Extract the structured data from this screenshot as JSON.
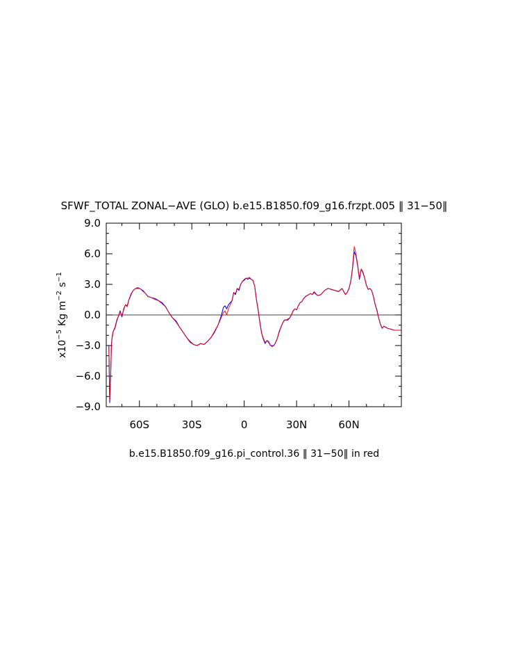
{
  "chart_data": {
    "type": "line",
    "title": "SFWF_TOTAL ZONAL−AVE (GLO) b.e15.B1850.f09_g16.frzpt.005 ‖ 31−50‖",
    "xlabel": "b.e15.B1850.f09_g16.pi_control.36 ‖ 31−50‖ in red",
    "ylabel": {
      "prefix": "x10",
      "exponent": "−5",
      "units": "Kg m",
      "m_exponent": "−2",
      "s_unit": "s",
      "s_exponent": "−1"
    },
    "xlim": [
      -79,
      90
    ],
    "ylim": [
      -9,
      9
    ],
    "xticks": [
      {
        "value": -60,
        "label": "60S"
      },
      {
        "value": -30,
        "label": "30S"
      },
      {
        "value": 0,
        "label": "0"
      },
      {
        "value": 30,
        "label": "30N"
      },
      {
        "value": 60,
        "label": "60N"
      }
    ],
    "yticks": [
      {
        "value": 9,
        "label": "9.0"
      },
      {
        "value": 6,
        "label": "6.0"
      },
      {
        "value": 3,
        "label": "3.0"
      },
      {
        "value": 0,
        "label": "0.0"
      },
      {
        "value": -3,
        "label": "−3.0"
      },
      {
        "value": -6,
        "label": "−6.0"
      },
      {
        "value": -9,
        "label": "−9.0"
      }
    ],
    "zero_line": true,
    "grid": false,
    "series": [
      {
        "color": "#0000ff",
        "x": [
          -77.5,
          -77,
          -76.5,
          -76,
          -75.5,
          -75,
          -74,
          -73,
          -72,
          -71,
          -70,
          -69,
          -68,
          -67,
          -66,
          -65,
          -64,
          -63,
          -62,
          -61,
          -60,
          -59,
          -58,
          -57,
          -56,
          -55,
          -53,
          -51,
          -49,
          -47,
          -45,
          -43,
          -41,
          -39,
          -37,
          -35,
          -33,
          -31,
          -29,
          -27,
          -25,
          -23,
          -21,
          -19,
          -17,
          -15,
          -13,
          -12,
          -11,
          -10,
          -9,
          -8,
          -7,
          -6,
          -5,
          -4,
          -3,
          -2,
          -1,
          0,
          1,
          2,
          3,
          4,
          5,
          6,
          7,
          8,
          9,
          10,
          11,
          12,
          13,
          14,
          15,
          16,
          17,
          18,
          19,
          20,
          21,
          22,
          23,
          24,
          25,
          26,
          27,
          28,
          29,
          30,
          31,
          32,
          33,
          34,
          35,
          36,
          37,
          38,
          39,
          40,
          42,
          44,
          46,
          48,
          50,
          52,
          54,
          56,
          58,
          59,
          60,
          61,
          62,
          63,
          64,
          65,
          66,
          67,
          68,
          69,
          70,
          71,
          72,
          73,
          74,
          75,
          76,
          77,
          78,
          79,
          80,
          81,
          82,
          84,
          86,
          88,
          90
        ],
        "values": [
          -3.0,
          -8.6,
          -6.0,
          -2.8,
          -2.0,
          -1.6,
          -1.3,
          -0.6,
          -0.1,
          0.4,
          -0.2,
          0.6,
          1.0,
          0.9,
          1.5,
          1.9,
          2.3,
          2.5,
          2.6,
          2.6,
          2.6,
          2.5,
          2.4,
          2.2,
          2.0,
          1.8,
          1.7,
          1.6,
          1.4,
          1.2,
          0.8,
          0.2,
          -0.3,
          -0.6,
          -1.2,
          -1.7,
          -2.2,
          -2.6,
          -2.9,
          -3.0,
          -2.8,
          -2.9,
          -2.6,
          -2.2,
          -1.7,
          -1.0,
          0.0,
          0.7,
          0.9,
          0.6,
          1.0,
          1.2,
          1.4,
          2.2,
          2.0,
          2.6,
          2.4,
          3.0,
          3.3,
          3.4,
          3.6,
          3.5,
          3.6,
          3.5,
          3.4,
          2.8,
          1.5,
          0.5,
          -0.8,
          -1.8,
          -2.4,
          -2.8,
          -2.5,
          -2.7,
          -3.0,
          -3.0,
          -3.0,
          -2.7,
          -2.3,
          -1.7,
          -1.2,
          -0.8,
          -0.5,
          -0.5,
          -0.5,
          -0.3,
          0.0,
          0.4,
          0.6,
          0.5,
          0.9,
          1.2,
          1.3,
          1.6,
          1.8,
          1.9,
          2.0,
          2.1,
          2.0,
          2.2,
          1.9,
          2.0,
          2.4,
          2.6,
          2.5,
          2.4,
          2.3,
          2.6,
          2.0,
          2.2,
          2.6,
          3.3,
          4.5,
          6.2,
          5.8,
          4.8,
          3.5,
          4.5,
          4.2,
          3.6,
          2.9,
          2.5,
          2.6,
          2.4,
          1.8,
          1.0,
          0.5,
          -0.3,
          -0.9,
          -1.3,
          -1.1,
          -1.2,
          -1.3,
          -1.4,
          -1.5,
          -1.5,
          -1.5
        ]
      },
      {
        "color": "#ff0000",
        "x": [
          -77.5,
          -77,
          -76.5,
          -76,
          -75.5,
          -75,
          -74,
          -73,
          -72,
          -71,
          -70,
          -69,
          -68,
          -67,
          -66,
          -65,
          -64,
          -63,
          -62,
          -61,
          -60,
          -59,
          -58,
          -57,
          -56,
          -55,
          -53,
          -51,
          -49,
          -47,
          -45,
          -43,
          -41,
          -39,
          -37,
          -35,
          -33,
          -31,
          -29,
          -27,
          -25,
          -23,
          -21,
          -19,
          -17,
          -15,
          -13,
          -12,
          -11,
          -10,
          -9,
          -8,
          -7,
          -6,
          -5,
          -4,
          -3,
          -2,
          -1,
          0,
          1,
          2,
          3,
          4,
          5,
          6,
          7,
          8,
          9,
          10,
          11,
          12,
          13,
          14,
          15,
          16,
          17,
          18,
          19,
          20,
          21,
          22,
          23,
          24,
          25,
          26,
          27,
          28,
          29,
          30,
          31,
          32,
          33,
          34,
          35,
          36,
          37,
          38,
          39,
          40,
          42,
          44,
          46,
          48,
          50,
          52,
          54,
          56,
          58,
          59,
          60,
          61,
          62,
          63,
          64,
          65,
          66,
          67,
          68,
          69,
          70,
          71,
          72,
          73,
          74,
          75,
          76,
          77,
          78,
          79,
          80,
          81,
          82,
          84,
          86,
          88,
          90
        ],
        "values": [
          -3.2,
          -8.4,
          -6.1,
          -2.9,
          -2.1,
          -1.6,
          -1.2,
          -0.5,
          -0.1,
          0.3,
          -0.1,
          0.5,
          1.0,
          0.8,
          1.5,
          2.0,
          2.3,
          2.5,
          2.6,
          2.7,
          2.6,
          2.5,
          2.3,
          2.2,
          2.0,
          1.8,
          1.7,
          1.5,
          1.4,
          1.1,
          0.8,
          0.2,
          -0.3,
          -0.7,
          -1.2,
          -1.7,
          -2.2,
          -2.7,
          -2.9,
          -3.0,
          -2.8,
          -2.9,
          -2.6,
          -2.2,
          -1.6,
          -1.0,
          -0.2,
          0.2,
          0.4,
          0.0,
          0.6,
          1.0,
          1.4,
          2.2,
          2.1,
          2.6,
          2.5,
          3.0,
          3.3,
          3.5,
          3.6,
          3.6,
          3.7,
          3.5,
          3.4,
          2.8,
          1.5,
          0.4,
          -0.7,
          -1.8,
          -2.3,
          -2.7,
          -2.5,
          -2.6,
          -3.0,
          -3.1,
          -3.0,
          -2.7,
          -2.3,
          -1.6,
          -1.2,
          -0.8,
          -0.5,
          -0.5,
          -0.4,
          -0.3,
          0.0,
          0.4,
          0.6,
          0.5,
          0.9,
          1.2,
          1.3,
          1.6,
          1.8,
          1.9,
          2.0,
          2.1,
          2.0,
          2.3,
          1.9,
          2.0,
          2.4,
          2.6,
          2.5,
          2.4,
          2.3,
          2.6,
          2.0,
          2.2,
          2.6,
          3.3,
          4.6,
          6.7,
          6.0,
          4.9,
          3.6,
          4.5,
          4.1,
          3.6,
          2.9,
          2.5,
          2.6,
          2.4,
          1.8,
          1.0,
          0.4,
          -0.3,
          -0.9,
          -1.3,
          -1.1,
          -1.2,
          -1.3,
          -1.4,
          -1.5,
          -1.5,
          -1.5
        ]
      }
    ]
  }
}
